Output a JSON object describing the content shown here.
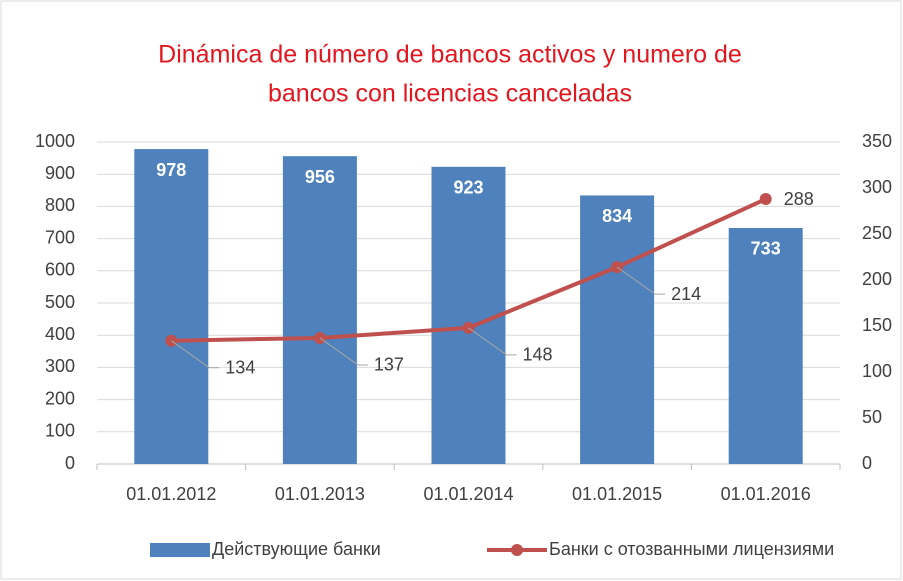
{
  "chart_data": {
    "type": "bar",
    "title": [
      "Dinámica de número de bancos activos y numero de",
      "bancos con licencias canceladas"
    ],
    "categories": [
      "01.01.2012",
      "01.01.2013",
      "01.01.2014",
      "01.01.2015",
      "01.01.2016"
    ],
    "series": [
      {
        "name": "Действующие банки",
        "type": "bar",
        "color": "#4f81bd",
        "axis": "y",
        "values": [
          978,
          956,
          923,
          834,
          733
        ]
      },
      {
        "name": "Банки с отозванными лицензиями",
        "type": "line",
        "color": "#c0504d",
        "axis": "y2",
        "values": [
          134,
          137,
          148,
          214,
          288
        ]
      }
    ],
    "ylim": [
      0,
      1000
    ],
    "yticks": [
      0,
      100,
      200,
      300,
      400,
      500,
      600,
      700,
      800,
      900,
      1000
    ],
    "y2lim": [
      0,
      350
    ],
    "y2ticks": [
      0,
      50,
      100,
      150,
      200,
      250,
      300,
      350
    ],
    "grid": true,
    "legend": "bottom"
  }
}
